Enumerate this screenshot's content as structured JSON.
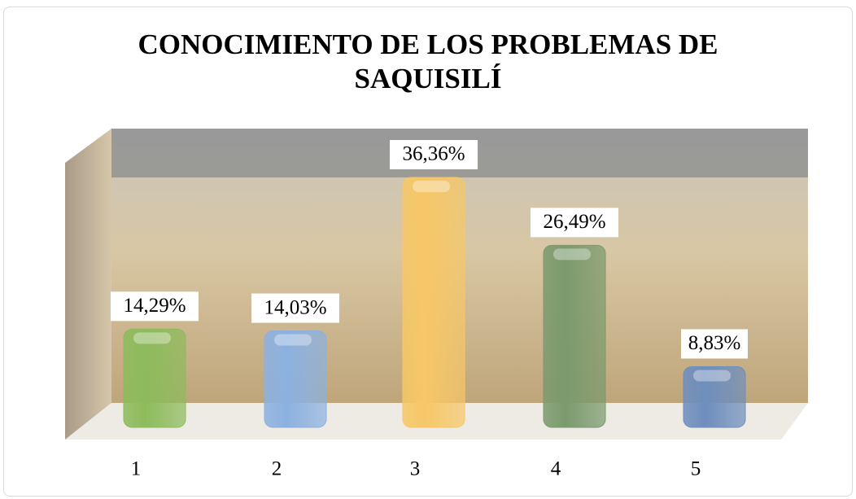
{
  "chart_data": {
    "type": "bar",
    "title": "CONOCIMIENTO DE LOS PROBLEMAS DE SAQUISILÍ",
    "categories": [
      "1",
      "2",
      "3",
      "4",
      "5"
    ],
    "values": [
      14.29,
      14.03,
      36.36,
      26.49,
      8.83
    ],
    "value_labels": [
      "14,29%",
      "14,03%",
      "36,36%",
      "26,49%",
      "8,83%"
    ],
    "colors": [
      "#8dbb5c",
      "#8cb1e0",
      "#f6c767",
      "#7b9a6d",
      "#6e8ebd"
    ]
  }
}
